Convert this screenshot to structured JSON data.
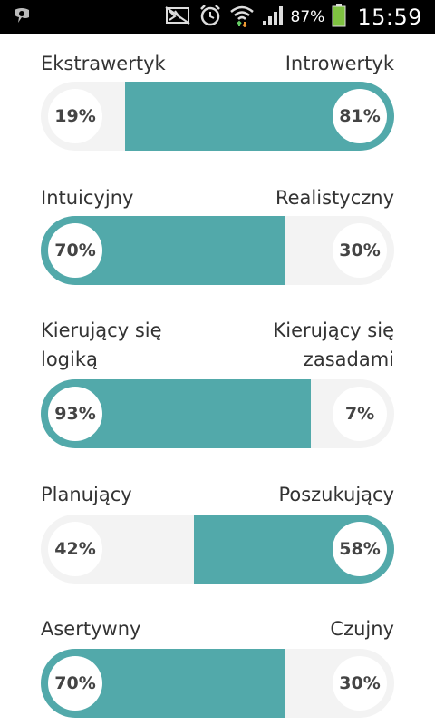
{
  "status_bar": {
    "battery_percent": "87%",
    "time": "15:59",
    "icons": [
      "app-notification-icon",
      "mute-icon",
      "alarm-icon",
      "wifi-icon",
      "signal-icon",
      "battery-icon"
    ]
  },
  "colors": {
    "accent": "#52a9aa",
    "track": "#f3f3f3",
    "text": "#333333"
  },
  "traits": [
    {
      "left_label": "Ekstrawertyk",
      "right_label": "Introwertyk",
      "left_value": "19%",
      "right_value": "81%",
      "dominant": "right",
      "dominant_fraction": 0.81
    },
    {
      "left_label": "Intuicyjny",
      "right_label": "Realistyczny",
      "left_value": "70%",
      "right_value": "30%",
      "dominant": "left",
      "dominant_fraction": 0.7
    },
    {
      "left_label_line1": "Kierujący się",
      "left_label_line2": "logiką",
      "right_label_line1": "Kierujący się",
      "right_label_line2": "zasadami",
      "left_value": "93%",
      "right_value": "7%",
      "dominant": "left",
      "dominant_fraction": 0.93
    },
    {
      "left_label": "Planujący",
      "right_label": "Poszukujący",
      "left_value": "42%",
      "right_value": "58%",
      "dominant": "right",
      "dominant_fraction": 0.58
    },
    {
      "left_label": "Asertywny",
      "right_label": "Czujny",
      "left_value": "70%",
      "right_value": "30%",
      "dominant": "left",
      "dominant_fraction": 0.7
    }
  ]
}
